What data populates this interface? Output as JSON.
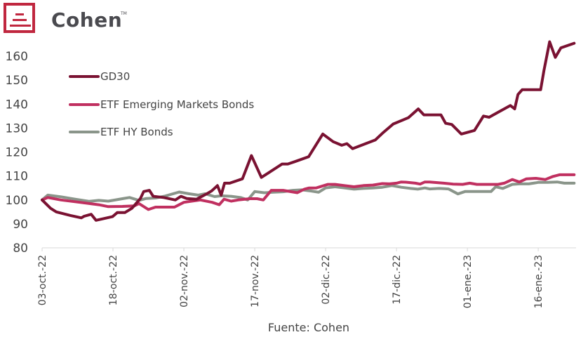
{
  "brand": {
    "name": "Cohen",
    "trademark": "TM",
    "color": "#c0273f"
  },
  "chart_data": {
    "type": "line",
    "title": "",
    "xlabel": "",
    "ylabel": "",
    "source": "Fuente: Cohen",
    "ylim": [
      80,
      165
    ],
    "yticks": [
      80,
      90,
      100,
      110,
      120,
      130,
      140,
      150,
      160
    ],
    "x_unit": "days since 03-oct-22",
    "xlim": [
      0,
      113
    ],
    "xticks": [
      {
        "day": 0,
        "label": "03-oct.-22"
      },
      {
        "day": 15,
        "label": "18-oct.-22"
      },
      {
        "day": 30,
        "label": "02-nov.-22"
      },
      {
        "day": 45,
        "label": "17-nov.-22"
      },
      {
        "day": 60,
        "label": "02-dic.-22"
      },
      {
        "day": 75,
        "label": "17-dic.-22"
      },
      {
        "day": 90,
        "label": "01-ene.-23"
      },
      {
        "day": 105,
        "label": "16-ene.-23"
      }
    ],
    "grid": false,
    "legend_position": "top-left",
    "series": [
      {
        "name": "GD30",
        "color": "#7a1232",
        "points": [
          [
            0,
            100
          ],
          [
            1.8,
            96.5
          ],
          [
            3,
            95
          ],
          [
            6,
            93.5
          ],
          [
            8.3,
            92.5
          ],
          [
            8.9,
            93.2
          ],
          [
            10.4,
            94
          ],
          [
            11.4,
            91.5
          ],
          [
            14.9,
            93
          ],
          [
            15.9,
            94.7
          ],
          [
            17.5,
            94.7
          ],
          [
            19,
            96.5
          ],
          [
            20.8,
            100.6
          ],
          [
            21.5,
            103.5
          ],
          [
            22.7,
            104
          ],
          [
            23.5,
            101.5
          ],
          [
            25.7,
            101
          ],
          [
            28.2,
            100
          ],
          [
            29.4,
            101.5
          ],
          [
            30.6,
            100.6
          ],
          [
            32.7,
            100.3
          ],
          [
            34.9,
            102.6
          ],
          [
            35.9,
            103.8
          ],
          [
            37.1,
            106
          ],
          [
            37.9,
            102
          ],
          [
            38.6,
            107
          ],
          [
            39.7,
            107
          ],
          [
            42.4,
            108.8
          ],
          [
            44.3,
            118.5
          ],
          [
            46.4,
            109.4
          ],
          [
            50.8,
            115
          ],
          [
            52,
            115
          ],
          [
            53.5,
            116
          ],
          [
            56.4,
            118
          ],
          [
            59.4,
            127.5
          ],
          [
            61.6,
            124.3
          ],
          [
            63.4,
            122.8
          ],
          [
            64.5,
            123.5
          ],
          [
            65.7,
            121.4
          ],
          [
            70.5,
            125
          ],
          [
            72,
            127.8
          ],
          [
            74.3,
            131.7
          ],
          [
            77.5,
            134.3
          ],
          [
            79.6,
            138
          ],
          [
            80.8,
            135.5
          ],
          [
            84.4,
            135.5
          ],
          [
            85.4,
            132
          ],
          [
            86.7,
            131.5
          ],
          [
            88.7,
            127.5
          ],
          [
            91.5,
            129
          ],
          [
            93.4,
            135
          ],
          [
            94.6,
            134.5
          ],
          [
            96.5,
            136.6
          ],
          [
            99.1,
            139.4
          ],
          [
            100,
            138
          ],
          [
            100.7,
            144
          ],
          [
            101.6,
            146
          ],
          [
            105.5,
            146
          ],
          [
            106.2,
            154
          ],
          [
            107.4,
            166
          ],
          [
            108.6,
            159.5
          ],
          [
            109.8,
            163.5
          ],
          [
            112.6,
            165.4
          ]
        ]
      },
      {
        "name": "ETF Emerging Markets Bonds",
        "color": "#c03060",
        "points": [
          [
            0,
            100
          ],
          [
            1.2,
            101
          ],
          [
            4,
            100
          ],
          [
            8,
            99
          ],
          [
            12,
            98
          ],
          [
            14,
            97.2
          ],
          [
            17,
            97.3
          ],
          [
            19.5,
            97.5
          ],
          [
            20.5,
            98.5
          ],
          [
            22.5,
            96
          ],
          [
            24,
            97
          ],
          [
            28,
            97
          ],
          [
            30,
            99
          ],
          [
            33.5,
            100
          ],
          [
            36,
            99
          ],
          [
            37.5,
            98
          ],
          [
            38.5,
            100.3
          ],
          [
            40,
            99.5
          ],
          [
            41.5,
            100
          ],
          [
            44,
            100.5
          ],
          [
            45.5,
            100.5
          ],
          [
            46.8,
            100
          ],
          [
            48.5,
            104
          ],
          [
            51,
            104
          ],
          [
            54,
            103
          ],
          [
            55.5,
            104.5
          ],
          [
            56.5,
            105
          ],
          [
            58,
            105
          ],
          [
            60.5,
            106.5
          ],
          [
            62,
            106.5
          ],
          [
            64,
            106
          ],
          [
            66,
            105.5
          ],
          [
            68,
            106
          ],
          [
            70,
            106.2
          ],
          [
            72,
            106.8
          ],
          [
            73.5,
            106.7
          ],
          [
            75,
            107
          ],
          [
            76,
            107.5
          ],
          [
            77,
            107.4
          ],
          [
            79,
            107
          ],
          [
            80,
            106.6
          ],
          [
            81,
            107.5
          ],
          [
            82,
            107.5
          ],
          [
            85,
            107
          ],
          [
            87,
            106.6
          ],
          [
            89,
            106.5
          ],
          [
            90.5,
            107
          ],
          [
            92,
            106.5
          ],
          [
            94,
            106.5
          ],
          [
            96.5,
            106.5
          ],
          [
            97.8,
            107
          ],
          [
            99.5,
            108.5
          ],
          [
            101,
            107.5
          ],
          [
            102.5,
            108.8
          ],
          [
            104.5,
            109
          ],
          [
            106.5,
            108.5
          ],
          [
            108,
            109.7
          ],
          [
            109.5,
            110.5
          ],
          [
            112.6,
            110.5
          ]
        ]
      },
      {
        "name": "ETF HY Bonds",
        "color": "#8a958a",
        "points": [
          [
            0,
            100
          ],
          [
            1.2,
            102
          ],
          [
            4,
            101.3
          ],
          [
            7,
            100.3
          ],
          [
            10,
            99.4
          ],
          [
            12,
            99.8
          ],
          [
            14,
            99.5
          ],
          [
            17,
            100.5
          ],
          [
            18.5,
            101
          ],
          [
            20.5,
            99.8
          ],
          [
            22,
            100.6
          ],
          [
            24,
            100.8
          ],
          [
            26,
            101.6
          ],
          [
            29,
            103.3
          ],
          [
            31,
            102.6
          ],
          [
            33,
            102
          ],
          [
            34.5,
            102.6
          ],
          [
            36.5,
            101.4
          ],
          [
            38,
            101.7
          ],
          [
            40,
            101.5
          ],
          [
            42,
            101
          ],
          [
            43.5,
            100
          ],
          [
            45,
            103.5
          ],
          [
            47,
            103
          ],
          [
            49,
            103.2
          ],
          [
            51,
            103.4
          ],
          [
            53,
            104
          ],
          [
            55,
            104.2
          ],
          [
            57,
            103.7
          ],
          [
            58.5,
            103.2
          ],
          [
            60,
            105
          ],
          [
            62,
            105.5
          ],
          [
            64,
            105
          ],
          [
            66,
            104.5
          ],
          [
            68,
            104.8
          ],
          [
            70,
            105
          ],
          [
            72,
            105.3
          ],
          [
            74,
            106
          ],
          [
            76,
            105.3
          ],
          [
            78,
            104.8
          ],
          [
            79.5,
            104.5
          ],
          [
            81,
            105
          ],
          [
            82,
            104.6
          ],
          [
            84,
            104.8
          ],
          [
            86,
            104.6
          ],
          [
            88,
            102.5
          ],
          [
            89.5,
            103.5
          ],
          [
            91,
            103.5
          ],
          [
            93,
            103.5
          ],
          [
            95,
            103.5
          ],
          [
            96,
            105.5
          ],
          [
            97.5,
            104.8
          ],
          [
            99.5,
            106.5
          ],
          [
            101,
            106.7
          ],
          [
            103,
            106.7
          ],
          [
            105,
            107.3
          ],
          [
            107,
            107.3
          ],
          [
            109,
            107.5
          ],
          [
            110.5,
            107
          ],
          [
            112.6,
            107
          ]
        ]
      }
    ]
  }
}
